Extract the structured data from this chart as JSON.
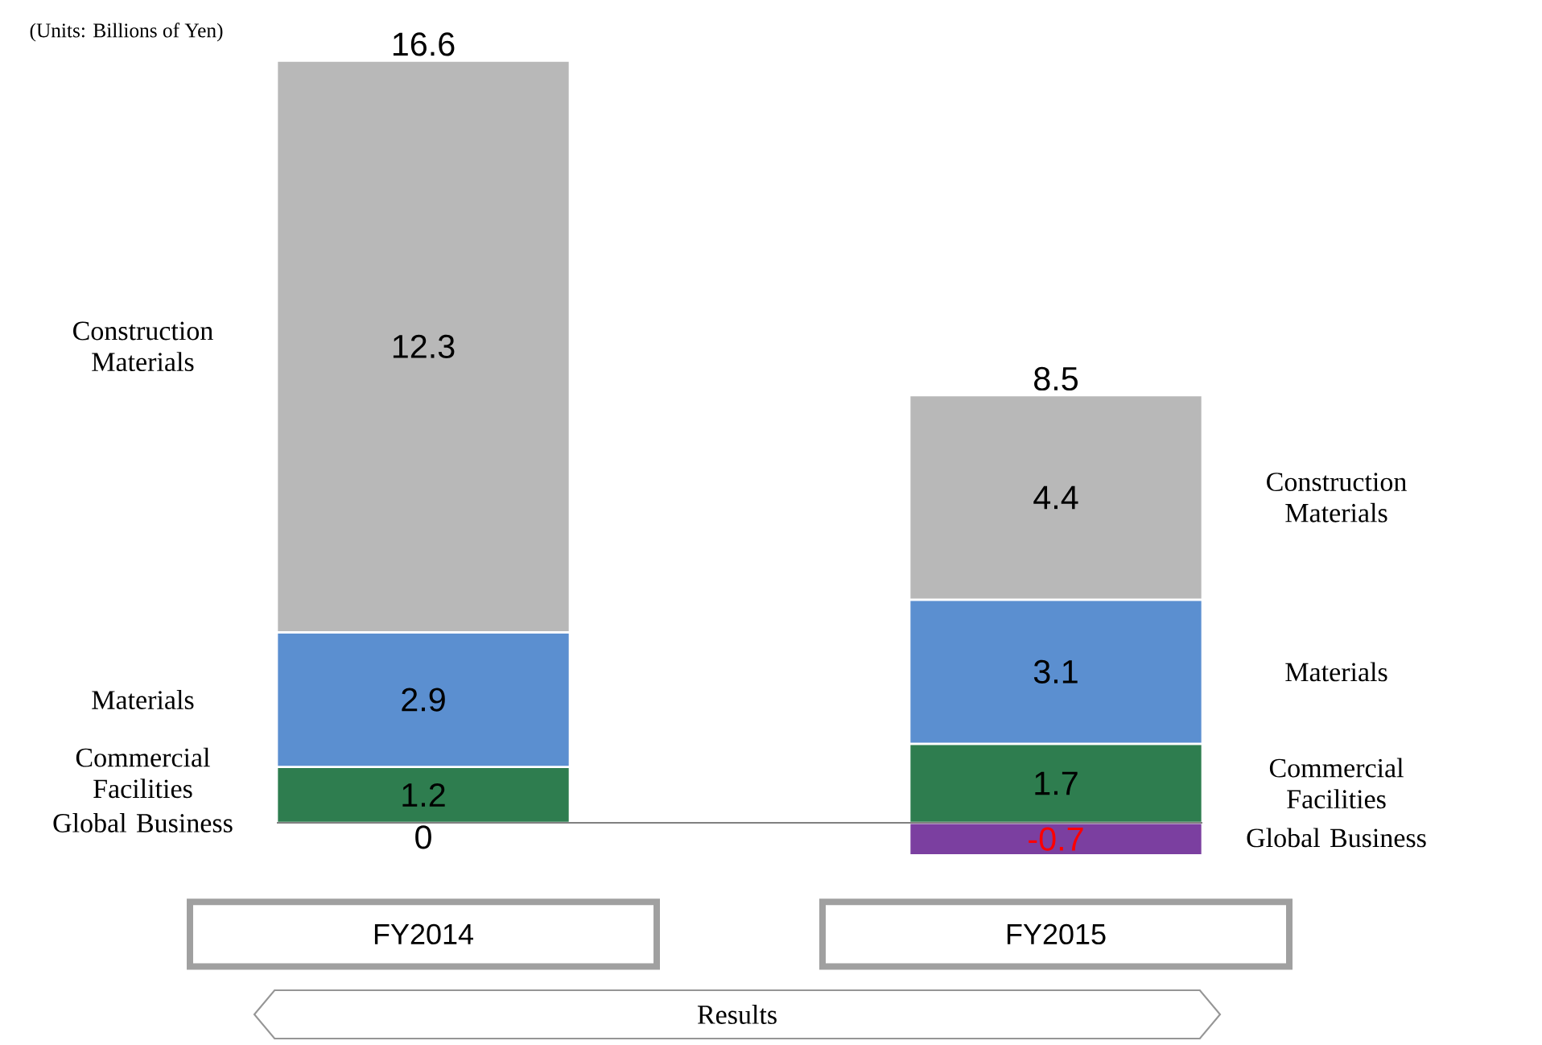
{
  "chart_data": {
    "type": "bar",
    "stacked": true,
    "categories": [
      "FY2014",
      "FY2015"
    ],
    "series": [
      {
        "name": "Global Business",
        "color": "#7b3fa0",
        "values": [
          0,
          -0.7
        ],
        "value_labels": [
          null,
          "-0.7"
        ]
      },
      {
        "name": "Commercial Facilities",
        "color": "#2e7d4f",
        "values": [
          1.2,
          1.7
        ],
        "value_labels": [
          "1.2",
          "1.7"
        ]
      },
      {
        "name": "Materials",
        "color": "#5b8fd0",
        "values": [
          2.9,
          3.1
        ],
        "value_labels": [
          "2.9",
          "3.1"
        ]
      },
      {
        "name": "Construction Materials",
        "color": "#b8b8b8",
        "values": [
          12.3,
          4.4
        ],
        "value_labels": [
          "12.3",
          "4.4"
        ]
      }
    ],
    "totals": [
      "16.6",
      "8.5"
    ],
    "legend": false,
    "annotations": [
      "(Units: Billions of Yen)",
      "Results",
      {
        "text": "0",
        "x": "FY2014",
        "y": 0
      }
    ]
  }
}
